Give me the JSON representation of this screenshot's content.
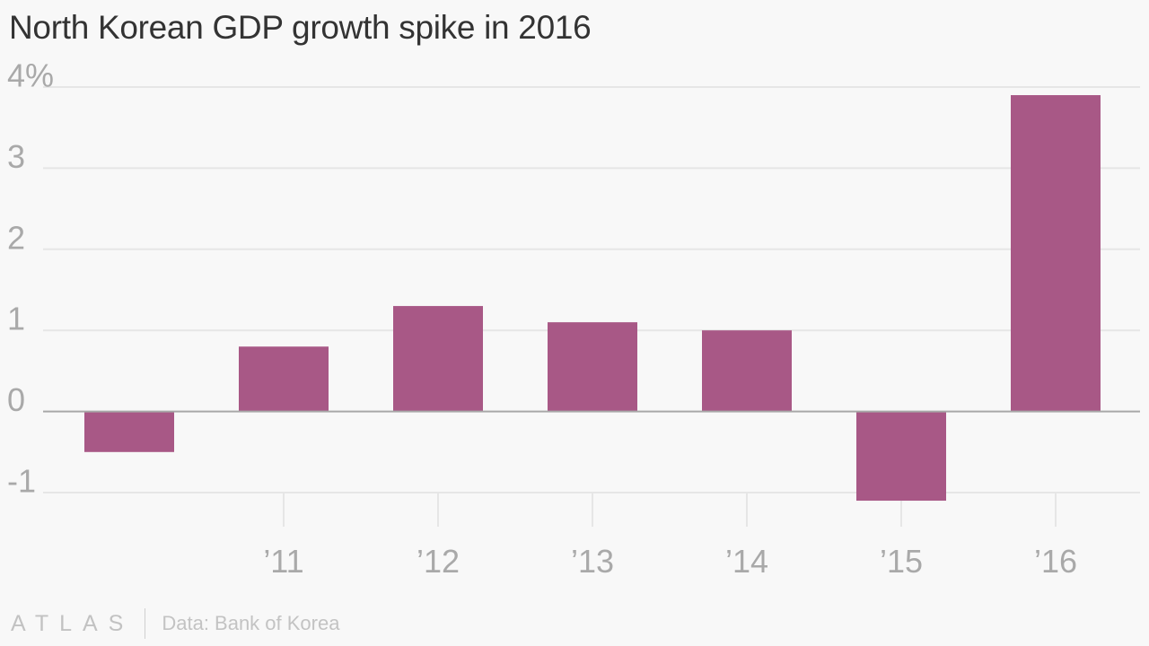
{
  "title": "North Korean GDP growth spike in 2016",
  "footer": {
    "brand": "ATLAS",
    "source": "Data: Bank of Korea"
  },
  "colors": {
    "bar": "#a85886",
    "grid": "#e6e6e6",
    "zero_line": "#a8a8a8",
    "tick_label": "#a9a9a9",
    "title": "#333333"
  },
  "chart_data": {
    "type": "bar",
    "title": "North Korean GDP growth spike in 2016",
    "xlabel": "",
    "ylabel": "",
    "categories": [
      "2010",
      "2011",
      "2012",
      "2013",
      "2014",
      "2015",
      "2016"
    ],
    "x_tick_labels": [
      "",
      "’11",
      "’12",
      "’13",
      "’14",
      "’15",
      "’16"
    ],
    "values": [
      -0.5,
      0.8,
      1.3,
      1.1,
      1.0,
      -1.1,
      3.9
    ],
    "ylim": [
      -1,
      4
    ],
    "y_ticks": [
      4,
      3,
      2,
      1,
      0,
      -1
    ],
    "y_tick_labels": [
      "4%",
      "3",
      "2",
      "1",
      "0",
      "-1"
    ],
    "grid": true,
    "legend": "none"
  }
}
